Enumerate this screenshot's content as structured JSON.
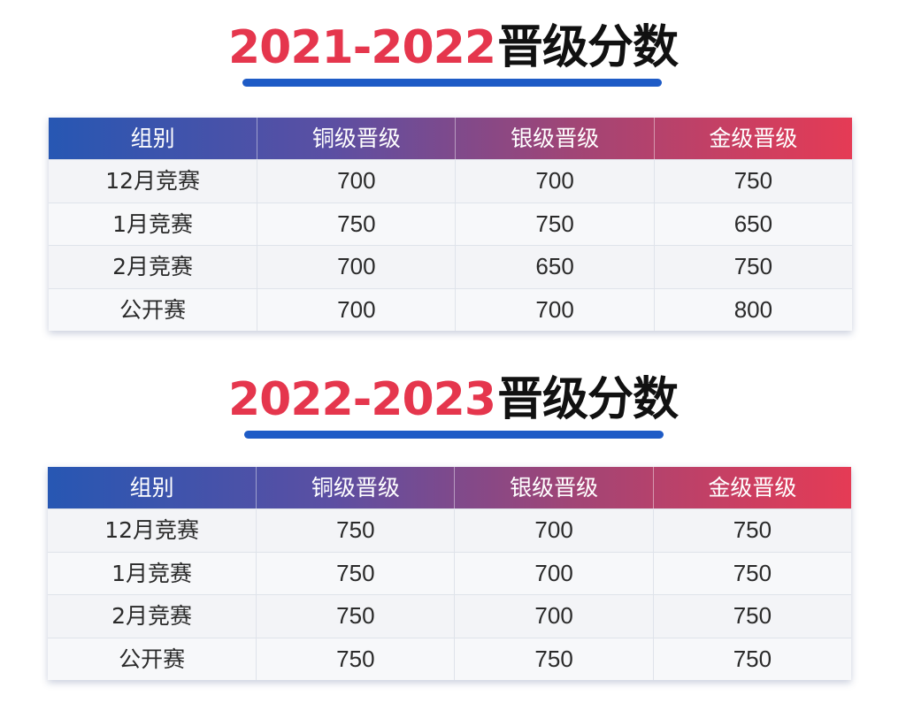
{
  "tables": [
    {
      "title_year": "2021-2022",
      "title_label": "晋级分数",
      "headers": [
        "组别",
        "铜级晋级",
        "银级晋级",
        "金级晋级"
      ],
      "rows": [
        [
          "12月竞赛",
          "700",
          "700",
          "750"
        ],
        [
          "1月竞赛",
          "750",
          "750",
          "650"
        ],
        [
          "2月竞赛",
          "700",
          "650",
          "750"
        ],
        [
          "公开赛",
          "700",
          "700",
          "800"
        ]
      ]
    },
    {
      "title_year": "2022-2023",
      "title_label": "晋级分数",
      "headers": [
        "组别",
        "铜级晋级",
        "银级晋级",
        "金级晋级"
      ],
      "rows": [
        [
          "12月竞赛",
          "750",
          "700",
          "750"
        ],
        [
          "1月竞赛",
          "750",
          "700",
          "750"
        ],
        [
          "2月竞赛",
          "750",
          "700",
          "750"
        ],
        [
          "公开赛",
          "750",
          "750",
          "750"
        ]
      ]
    }
  ],
  "colors": {
    "title_year": "#e5364d",
    "underline": "#1e5bc6",
    "header_gradient_start": "#2757b3",
    "header_gradient_end": "#e53b55"
  }
}
